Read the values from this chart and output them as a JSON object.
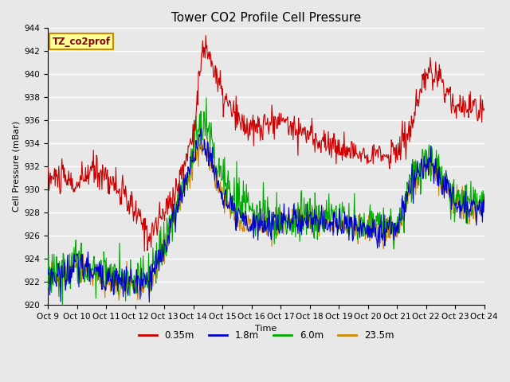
{
  "title": "Tower CO2 Profile Cell Pressure",
  "ylabel": "Cell Pressure (mBar)",
  "xlabel": "Time",
  "legend_label": "TZ_co2prof",
  "series_labels": [
    "0.35m",
    "1.8m",
    "6.0m",
    "23.5m"
  ],
  "series_colors": [
    "#cc0000",
    "#0000cc",
    "#00aa00",
    "#cc8800"
  ],
  "ylim": [
    920,
    944
  ],
  "xtick_labels": [
    "Oct 9",
    "Oct 10",
    "Oct 11",
    "Oct 12",
    "Oct 13",
    "Oct 14",
    "Oct 15",
    "Oct 16",
    "Oct 17",
    "Oct 18",
    "Oct 19",
    "Oct 20",
    "Oct 21",
    "Oct 22",
    "Oct 23",
    "Oct 24"
  ],
  "background_color": "#e8e8e8",
  "legend_box_color": "#ffff99",
  "legend_box_edge": "#cc8800",
  "title_fontsize": 11,
  "axis_fontsize": 8,
  "tick_fontsize": 7.5
}
